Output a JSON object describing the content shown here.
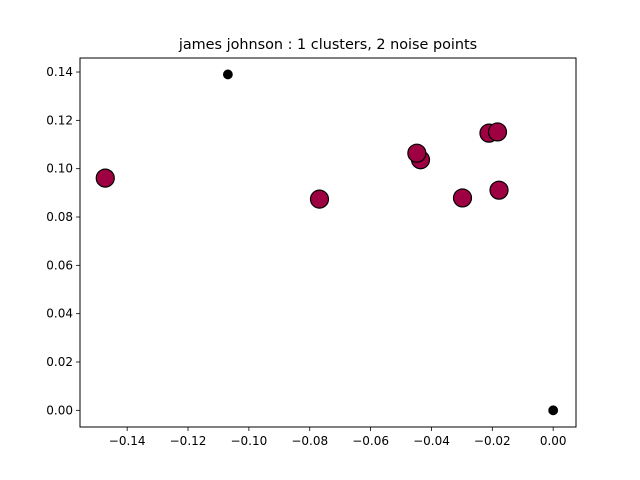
{
  "chart_data": {
    "type": "scatter",
    "title": "james johnson : 1 clusters, 2 noise points",
    "xlabel": "",
    "ylabel": "",
    "xlim": [
      -0.1555,
      0.0075
    ],
    "ylim": [
      -0.0069,
      0.1458
    ],
    "xticks": [
      {
        "value": -0.14,
        "label": "−0.14"
      },
      {
        "value": -0.12,
        "label": "−0.12"
      },
      {
        "value": -0.1,
        "label": "−0.10"
      },
      {
        "value": -0.08,
        "label": "−0.08"
      },
      {
        "value": -0.06,
        "label": "−0.06"
      },
      {
        "value": -0.04,
        "label": "−0.04"
      },
      {
        "value": -0.02,
        "label": "−0.02"
      },
      {
        "value": 0.0,
        "label": "0.00"
      }
    ],
    "yticks": [
      {
        "value": 0.0,
        "label": "0.00"
      },
      {
        "value": 0.02,
        "label": "0.02"
      },
      {
        "value": 0.04,
        "label": "0.04"
      },
      {
        "value": 0.06,
        "label": "0.06"
      },
      {
        "value": 0.08,
        "label": "0.08"
      },
      {
        "value": 0.1,
        "label": "0.10"
      },
      {
        "value": 0.12,
        "label": "0.12"
      },
      {
        "value": 0.14,
        "label": "0.14"
      }
    ],
    "grid": false,
    "series": [
      {
        "color": "#9e0142",
        "edgecolor": "#000000",
        "marker_size": "large",
        "points": [
          {
            "x": -0.1472,
            "y": 0.0961
          },
          {
            "x": -0.0768,
            "y": 0.0874
          },
          {
            "x": -0.0436,
            "y": 0.1037
          },
          {
            "x": -0.0448,
            "y": 0.1064
          },
          {
            "x": -0.0298,
            "y": 0.0879
          },
          {
            "x": -0.0211,
            "y": 0.1147
          },
          {
            "x": -0.0183,
            "y": 0.1152
          },
          {
            "x": -0.0178,
            "y": 0.0911
          }
        ]
      },
      {
        "color": "#000000",
        "edgecolor": "#000000",
        "marker_size": "small",
        "points": [
          {
            "x": -0.1069,
            "y": 0.139
          },
          {
            "x": 0.0,
            "y": 0.0
          }
        ]
      }
    ]
  }
}
